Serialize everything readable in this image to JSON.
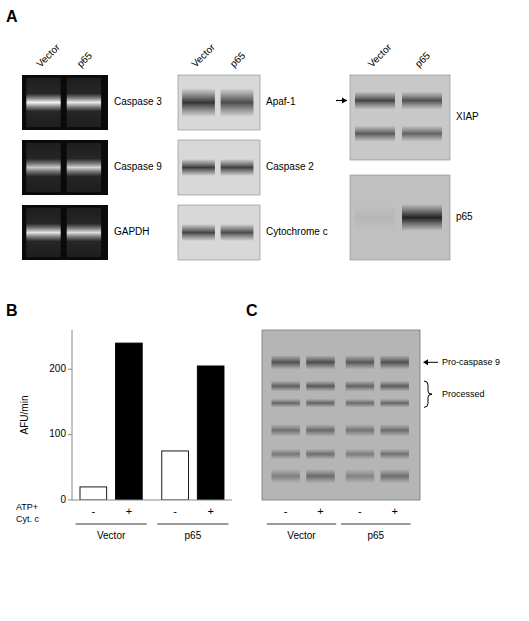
{
  "chart_data": [
    {
      "type": "blot",
      "title": "A",
      "categories": [
        "Vector",
        "p65"
      ],
      "annotations": [
        "Caspase 3",
        "Caspase 9",
        "GAPDH",
        "Apaf-1",
        "Caspase 2",
        "Cytochrome c",
        "XIAP",
        "p65"
      ]
    },
    {
      "type": "bar",
      "title": "B",
      "categories": [
        "-",
        "+",
        "-",
        "+"
      ],
      "values": [
        20,
        240,
        75,
        205
      ],
      "colors": [
        "white",
        "black",
        "white",
        "black"
      ],
      "ylabel": "AFU/min",
      "ylim": [
        0,
        260
      ],
      "yticks": [
        0,
        100,
        200
      ],
      "annotations": [
        "Vector",
        "p65",
        "ATP+",
        "Cyt. c"
      ]
    },
    {
      "type": "blot",
      "title": "C",
      "categories": [
        "-",
        "+",
        "-",
        "+"
      ],
      "annotations": [
        "Pro-caspase 9",
        "Processed",
        "Vector",
        "p65"
      ]
    }
  ]
}
